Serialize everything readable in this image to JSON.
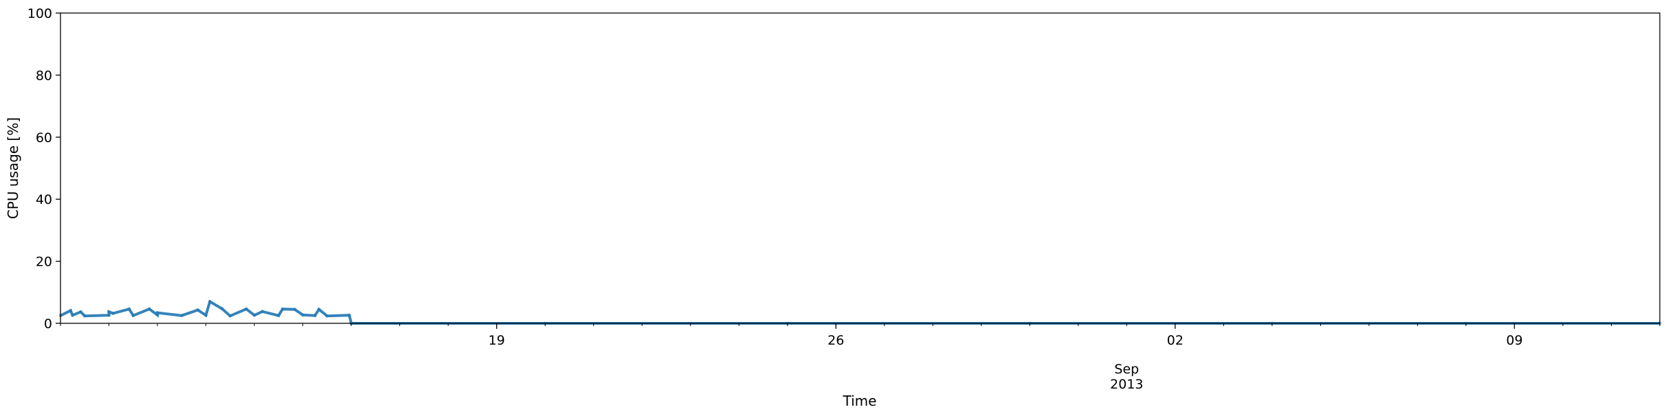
{
  "chart_data": {
    "type": "scatter",
    "title": "",
    "xlabel": "Time",
    "ylabel": "CPU usage [%]",
    "ylim": [
      0,
      100
    ],
    "xlim": [
      "2013-08-10T00:00",
      "2013-09-12T00:00"
    ],
    "grid": false,
    "y_ticks": [
      0,
      20,
      40,
      60,
      80,
      100
    ],
    "x_major_ticks": [
      {
        "date": "2013-08-19",
        "label": "19"
      },
      {
        "date": "2013-08-26",
        "label": "26"
      },
      {
        "date": "2013-09-02",
        "label": "02"
      },
      {
        "date": "2013-09-09",
        "label": "09"
      }
    ],
    "x_secondary_labels": [
      {
        "date": "2013-09-01",
        "label": "Sep"
      },
      {
        "date": "2013-09-01",
        "label": "2013"
      }
    ],
    "series": [
      {
        "color": "#1f77b4",
        "points": [
          {
            "x": "2013-08-10T00:00",
            "y": 2.5
          },
          {
            "x": "2013-08-10T06:00",
            "y": 2.6
          },
          {
            "x": "2013-08-10T05:00",
            "y": 4.1
          },
          {
            "x": "2013-08-10T10:00",
            "y": 3.7
          },
          {
            "x": "2013-08-10T12:00",
            "y": 2.4
          },
          {
            "x": "2013-08-11T00:00",
            "y": 2.6
          },
          {
            "x": "2013-08-11T00:00",
            "y": 3.7
          },
          {
            "x": "2013-08-11T02:00",
            "y": 3.2
          },
          {
            "x": "2013-08-11T12:00",
            "y": 2.5
          },
          {
            "x": "2013-08-11T10:00",
            "y": 4.6
          },
          {
            "x": "2013-08-12T00:00",
            "y": 2.7
          },
          {
            "x": "2013-08-11T20:00",
            "y": 4.6
          },
          {
            "x": "2013-08-12T00:00",
            "y": 3.4
          },
          {
            "x": "2013-08-12T12:00",
            "y": 2.5
          },
          {
            "x": "2013-08-12T20:00",
            "y": 4.3
          },
          {
            "x": "2013-08-13T00:00",
            "y": 2.6
          },
          {
            "x": "2013-08-13T02:00",
            "y": 7.0
          },
          {
            "x": "2013-08-13T12:00",
            "y": 2.4
          },
          {
            "x": "2013-08-13T08:00",
            "y": 4.7
          },
          {
            "x": "2013-08-14T00:00",
            "y": 2.6
          },
          {
            "x": "2013-08-13T20:00",
            "y": 4.6
          },
          {
            "x": "2013-08-14T04:00",
            "y": 3.8
          },
          {
            "x": "2013-08-14T12:00",
            "y": 2.5
          },
          {
            "x": "2013-08-14T14:00",
            "y": 4.6
          },
          {
            "x": "2013-08-14T20:00",
            "y": 4.5
          },
          {
            "x": "2013-08-15T00:00",
            "y": 2.7
          },
          {
            "x": "2013-08-15T06:00",
            "y": 2.5
          },
          {
            "x": "2013-08-15T08:00",
            "y": 4.5
          },
          {
            "x": "2013-08-15T12:00",
            "y": 2.4
          },
          {
            "x": "2013-08-15T23:00",
            "y": 2.6
          },
          {
            "x": "2013-08-16T00:00",
            "y": 0.0
          },
          {
            "x": "2013-08-20T00:00",
            "y": 0.0
          },
          {
            "x": "2013-08-25T00:00",
            "y": 0.0
          },
          {
            "x": "2013-08-30T00:00",
            "y": 0.0
          },
          {
            "x": "2013-09-04T00:00",
            "y": 0.0
          },
          {
            "x": "2013-09-08T00:00",
            "y": 0.0
          },
          {
            "x": "2013-09-12T00:00",
            "y": 0.0
          }
        ]
      }
    ]
  }
}
